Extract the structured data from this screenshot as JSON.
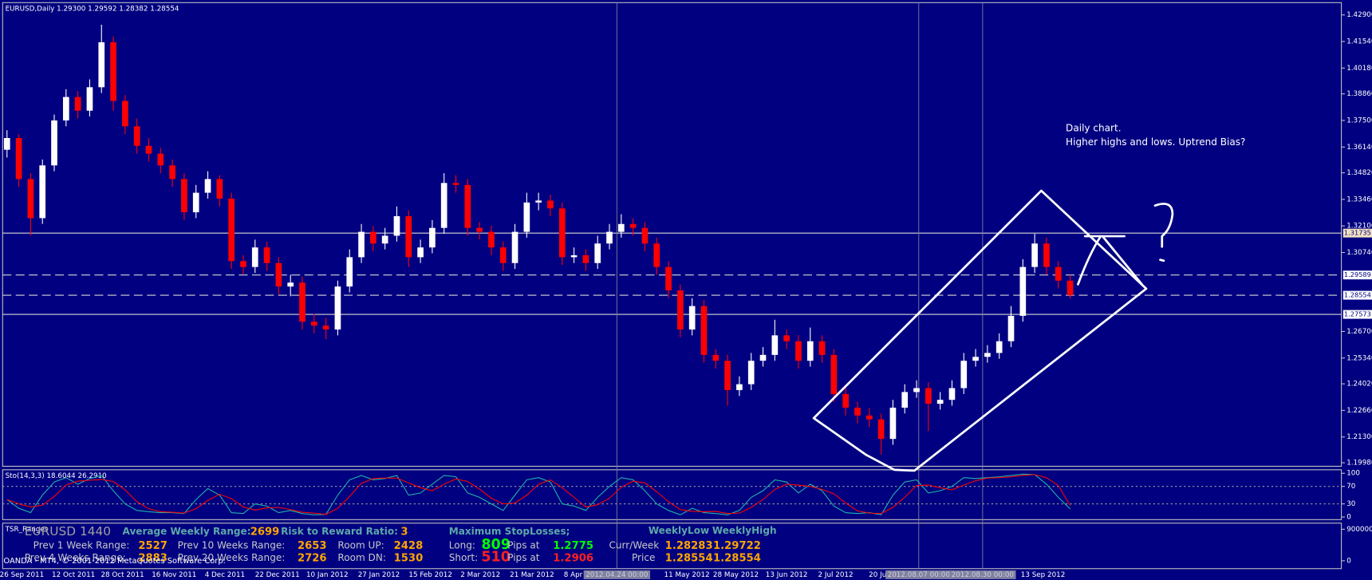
{
  "chart_data": [
    {
      "type": "candlestick",
      "title": "EURUSD,Daily  1.29300 1.29592 1.28382 1.28554",
      "up_color": "#ffffff",
      "down_color": "#ff0000",
      "ylim": [
        1.198,
        1.4353
      ],
      "yticks": [
        {
          "value": 1.429,
          "label": "1.42900"
        },
        {
          "value": 1.4154,
          "label": "1.41540"
        },
        {
          "value": 1.4018,
          "label": "1.40180"
        },
        {
          "value": 1.3886,
          "label": "1.38860"
        },
        {
          "value": 1.375,
          "label": "1.37500"
        },
        {
          "value": 1.3614,
          "label": "1.36140"
        },
        {
          "value": 1.3482,
          "label": "1.34820"
        },
        {
          "value": 1.3346,
          "label": "1.33460"
        },
        {
          "value": 1.321,
          "label": "1.32100"
        },
        {
          "value": 1.3074,
          "label": "1.30740"
        },
        {
          "value": 1.267,
          "label": "1.26700"
        },
        {
          "value": 1.2534,
          "label": "1.25340"
        },
        {
          "value": 1.2402,
          "label": "1.24020"
        },
        {
          "value": 1.2266,
          "label": "1.22660"
        },
        {
          "value": 1.213,
          "label": "1.21300"
        },
        {
          "value": 1.1998,
          "label": "1.19980"
        }
      ],
      "levels": [
        {
          "value": 1.31735,
          "label": "1.31735",
          "style": "solid"
        },
        {
          "value": 1.29589,
          "label": "1.29589",
          "style": "dash"
        },
        {
          "value": 1.28554,
          "label": "1.28554",
          "style": "dash"
        },
        {
          "value": 1.27573,
          "label": "1.27573",
          "style": "solid"
        }
      ],
      "x_labels": [
        "26 Sep 2011",
        "12 Oct 2011",
        "28 Oct 2011",
        "16 Nov 2011",
        "4 Dec 2011",
        "22 Dec 2011",
        "10 Jan 2012",
        "27 Jan 2012",
        "15 Feb 2012",
        "2 Mar 2012",
        "21 Mar 2012",
        "8 Apr",
        "11 May 2012",
        "28 May 2012",
        "13 Jun 2012",
        "2 Jul 2012",
        "20 Ju",
        "13 Sep 2012"
      ],
      "x_markers": [
        "2012.04.24 00:00",
        "2012.08.07 00:00",
        "2012.08.30 00:00"
      ],
      "annotations": [
        "Daily chart.",
        "Higher highs and lows. Uptrend Bias?"
      ],
      "ohlc": [
        [
          1.36,
          1.37,
          1.356,
          1.366
        ],
        [
          1.366,
          1.368,
          1.341,
          1.345
        ],
        [
          1.345,
          1.348,
          1.316,
          1.325
        ],
        [
          1.325,
          1.355,
          1.322,
          1.352
        ],
        [
          1.352,
          1.378,
          1.349,
          1.375
        ],
        [
          1.375,
          1.391,
          1.372,
          1.387
        ],
        [
          1.387,
          1.39,
          1.376,
          1.38
        ],
        [
          1.38,
          1.396,
          1.377,
          1.392
        ],
        [
          1.392,
          1.424,
          1.389,
          1.415
        ],
        [
          1.415,
          1.418,
          1.38,
          1.385
        ],
        [
          1.385,
          1.388,
          1.368,
          1.372
        ],
        [
          1.372,
          1.376,
          1.358,
          1.362
        ],
        [
          1.362,
          1.366,
          1.354,
          1.358
        ],
        [
          1.358,
          1.361,
          1.348,
          1.352
        ],
        [
          1.352,
          1.355,
          1.341,
          1.345
        ],
        [
          1.345,
          1.348,
          1.324,
          1.328
        ],
        [
          1.328,
          1.342,
          1.325,
          1.338
        ],
        [
          1.338,
          1.349,
          1.335,
          1.345
        ],
        [
          1.345,
          1.347,
          1.331,
          1.335
        ],
        [
          1.335,
          1.338,
          1.299,
          1.303
        ],
        [
          1.303,
          1.306,
          1.296,
          1.3
        ],
        [
          1.3,
          1.314,
          1.297,
          1.31
        ],
        [
          1.31,
          1.313,
          1.298,
          1.302
        ],
        [
          1.302,
          1.305,
          1.286,
          1.29
        ],
        [
          1.29,
          1.296,
          1.285,
          1.292
        ],
        [
          1.292,
          1.295,
          1.268,
          1.272
        ],
        [
          1.272,
          1.276,
          1.266,
          1.27
        ],
        [
          1.27,
          1.274,
          1.263,
          1.268
        ],
        [
          1.268,
          1.293,
          1.265,
          1.29
        ],
        [
          1.29,
          1.309,
          1.287,
          1.305
        ],
        [
          1.305,
          1.322,
          1.302,
          1.318
        ],
        [
          1.318,
          1.321,
          1.308,
          1.312
        ],
        [
          1.312,
          1.32,
          1.309,
          1.316
        ],
        [
          1.316,
          1.331,
          1.313,
          1.326
        ],
        [
          1.326,
          1.329,
          1.3,
          1.305
        ],
        [
          1.305,
          1.314,
          1.302,
          1.31
        ],
        [
          1.31,
          1.324,
          1.307,
          1.32
        ],
        [
          1.32,
          1.348,
          1.317,
          1.343
        ],
        [
          1.343,
          1.347,
          1.338,
          1.342
        ],
        [
          1.342,
          1.345,
          1.316,
          1.32
        ],
        [
          1.32,
          1.323,
          1.314,
          1.318
        ],
        [
          1.318,
          1.321,
          1.306,
          1.31
        ],
        [
          1.31,
          1.313,
          1.298,
          1.302
        ],
        [
          1.302,
          1.322,
          1.299,
          1.318
        ],
        [
          1.318,
          1.338,
          1.315,
          1.333
        ],
        [
          1.333,
          1.338,
          1.329,
          1.334
        ],
        [
          1.334,
          1.337,
          1.326,
          1.33
        ],
        [
          1.33,
          1.333,
          1.301,
          1.305
        ],
        [
          1.305,
          1.31,
          1.302,
          1.306
        ],
        [
          1.306,
          1.309,
          1.298,
          1.302
        ],
        [
          1.302,
          1.316,
          1.299,
          1.312
        ],
        [
          1.312,
          1.322,
          1.309,
          1.318
        ],
        [
          1.318,
          1.327,
          1.315,
          1.322
        ],
        [
          1.322,
          1.325,
          1.316,
          1.32
        ],
        [
          1.32,
          1.323,
          1.308,
          1.312
        ],
        [
          1.312,
          1.315,
          1.296,
          1.3
        ],
        [
          1.3,
          1.303,
          1.284,
          1.288
        ],
        [
          1.288,
          1.291,
          1.264,
          1.268
        ],
        [
          1.268,
          1.284,
          1.265,
          1.28
        ],
        [
          1.28,
          1.283,
          1.251,
          1.255
        ],
        [
          1.255,
          1.258,
          1.248,
          1.252
        ],
        [
          1.252,
          1.255,
          1.229,
          1.237
        ],
        [
          1.237,
          1.244,
          1.234,
          1.24
        ],
        [
          1.24,
          1.256,
          1.237,
          1.252
        ],
        [
          1.252,
          1.259,
          1.249,
          1.255
        ],
        [
          1.255,
          1.273,
          1.252,
          1.265
        ],
        [
          1.265,
          1.268,
          1.258,
          1.262
        ],
        [
          1.262,
          1.265,
          1.248,
          1.252
        ],
        [
          1.252,
          1.269,
          1.249,
          1.262
        ],
        [
          1.262,
          1.265,
          1.251,
          1.255
        ],
        [
          1.255,
          1.258,
          1.231,
          1.235
        ],
        [
          1.235,
          1.238,
          1.224,
          1.228
        ],
        [
          1.228,
          1.231,
          1.22,
          1.224
        ],
        [
          1.224,
          1.228,
          1.218,
          1.222
        ],
        [
          1.222,
          1.225,
          1.204,
          1.212
        ],
        [
          1.212,
          1.232,
          1.209,
          1.228
        ],
        [
          1.228,
          1.24,
          1.225,
          1.236
        ],
        [
          1.236,
          1.242,
          1.233,
          1.238
        ],
        [
          1.238,
          1.241,
          1.216,
          1.23
        ],
        [
          1.23,
          1.236,
          1.227,
          1.232
        ],
        [
          1.232,
          1.242,
          1.229,
          1.238
        ],
        [
          1.238,
          1.256,
          1.235,
          1.252
        ],
        [
          1.252,
          1.258,
          1.249,
          1.254
        ],
        [
          1.254,
          1.26,
          1.251,
          1.256
        ],
        [
          1.256,
          1.266,
          1.253,
          1.262
        ],
        [
          1.262,
          1.28,
          1.259,
          1.275
        ],
        [
          1.275,
          1.304,
          1.272,
          1.3
        ],
        [
          1.3,
          1.317,
          1.297,
          1.312
        ],
        [
          1.312,
          1.315,
          1.296,
          1.3
        ],
        [
          1.3,
          1.303,
          1.289,
          1.293
        ],
        [
          1.293,
          1.29592,
          1.28382,
          1.28554
        ]
      ]
    },
    {
      "type": "line",
      "title": "Sto(14,3,3) 18.6044 26.2910",
      "ylim": [
        -6,
        108
      ],
      "yticks": [
        100,
        70,
        30,
        0
      ],
      "levels": [
        70,
        30
      ],
      "series": [
        {
          "color": "#20b2aa",
          "values": [
            40,
            20,
            10,
            50,
            80,
            90,
            75,
            88,
            95,
            60,
            30,
            15,
            12,
            10,
            10,
            8,
            40,
            65,
            50,
            10,
            8,
            30,
            25,
            10,
            15,
            8,
            5,
            6,
            50,
            85,
            95,
            85,
            88,
            95,
            50,
            55,
            75,
            95,
            92,
            55,
            45,
            30,
            15,
            50,
            85,
            90,
            80,
            30,
            25,
            15,
            45,
            70,
            90,
            85,
            60,
            30,
            15,
            5,
            20,
            10,
            8,
            5,
            15,
            45,
            60,
            85,
            80,
            55,
            75,
            60,
            25,
            10,
            8,
            10,
            5,
            50,
            80,
            85,
            55,
            60,
            70,
            90,
            88,
            90,
            92,
            95,
            98,
            97,
            75,
            45,
            18.6044
          ]
        },
        {
          "color": "#ff0000",
          "values": [
            40,
            30,
            23,
            27,
            47,
            73,
            82,
            84,
            86,
            81,
            62,
            35,
            19,
            12,
            11,
            9,
            19,
            38,
            52,
            42,
            23,
            16,
            21,
            22,
            17,
            11,
            9,
            6,
            20,
            47,
            77,
            88,
            89,
            89,
            78,
            67,
            60,
            75,
            87,
            81,
            64,
            43,
            30,
            32,
            50,
            75,
            85,
            67,
            45,
            23,
            28,
            43,
            68,
            82,
            78,
            58,
            35,
            17,
            13,
            12,
            13,
            8,
            9,
            22,
            40,
            63,
            75,
            73,
            70,
            63,
            53,
            32,
            14,
            9,
            8,
            22,
            45,
            72,
            73,
            67,
            62,
            73,
            83,
            89,
            90,
            92,
            95,
            97,
            90,
            72,
            26.291
          ]
        }
      ]
    }
  ],
  "indicator_panel": {
    "name": "TSR_Ranges",
    "yticks": [
      900000,
      0
    ],
    "symbol": "EURUSD 1440",
    "avg_label": "Average Weekly Range:",
    "avg": "2699",
    "rr_label": "Risk to Reward Ratio:",
    "rr": "3",
    "sl_label": "Maximum StopLosses;",
    "wl_label": "WeeklyLow",
    "wh_label": "WeeklyHigh",
    "p1_label": "Prev 1 Week Range:",
    "p1": "2527",
    "p10_label": "Prev 10 Weeks Range:",
    "p10": "2653",
    "up_label": "Room UP:",
    "up": "2428",
    "long_label": "Long:",
    "long": "809",
    "pips1": "Pips at",
    "long_at": "1.2775",
    "cw_label": "Curr/Week",
    "cw_low": "1.28283",
    "cw_high": "1.29722",
    "p4_label": "Prev 4 Weeks Range:",
    "p4": "2883",
    "p20_label": "Prev 20 Weeks Range:",
    "p20": "2726",
    "dn_label": "Room DN:",
    "dn": "1530",
    "short_label": "Short:",
    "short": "510",
    "pips2": "Pips at",
    "short_at": "1.2906",
    "price_label": "Price",
    "price_low": "1.28554",
    "price_high": "1.28554",
    "copyright": "OANDA - MT4, © 2001-2012 MetaQuotes Software Corp."
  }
}
